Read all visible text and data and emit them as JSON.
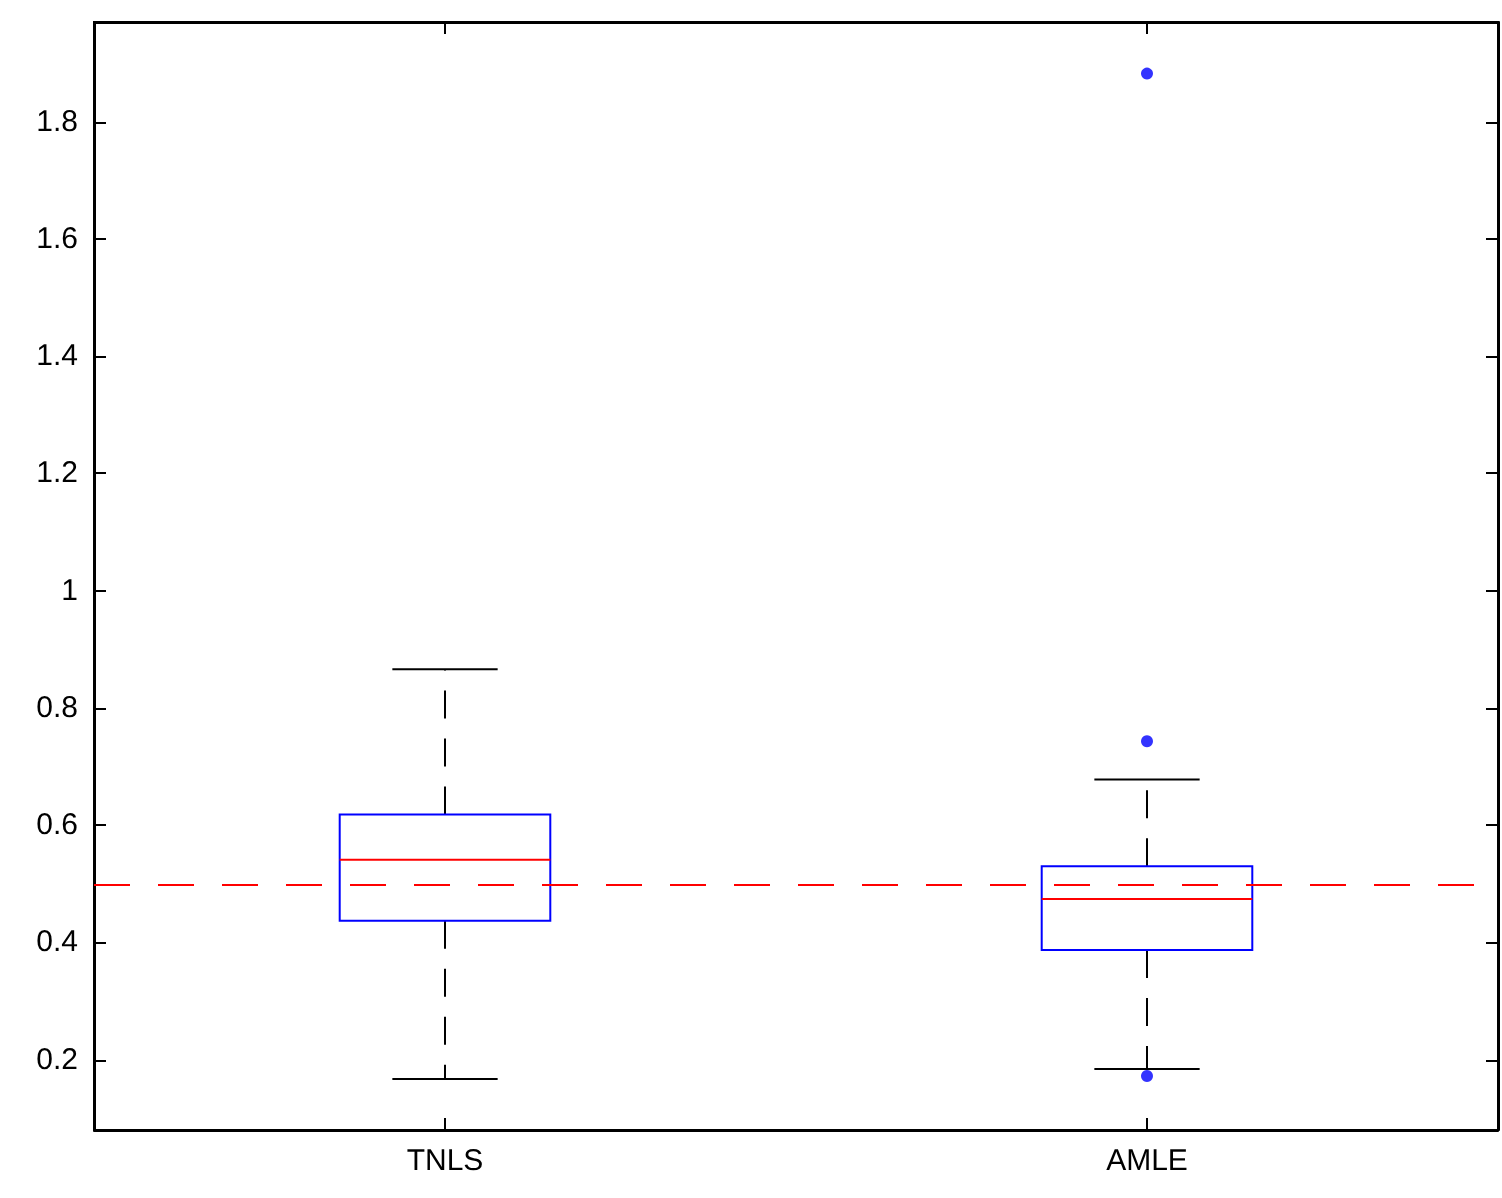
{
  "chart_data": {
    "type": "box",
    "categories": [
      "TNLS",
      "AMLE"
    ],
    "series": [
      {
        "color": "#0000ff",
        "boxes": [
          {
            "low": 0.167,
            "q1": 0.437,
            "median": 0.541,
            "q3": 0.618,
            "high": 0.866
          },
          {
            "low": 0.184,
            "q1": 0.387,
            "median": 0.474,
            "q3": 0.53,
            "high": 0.678,
            "outliers": [
              1.882,
              0.743,
              0.172
            ]
          }
        ]
      }
    ],
    "ylim": [
      0.08,
      1.97
    ],
    "yticks": [
      0.2,
      0.4,
      0.6,
      0.8,
      1,
      1.2,
      1.4,
      1.6,
      1.8
    ],
    "ref_lines": [
      {
        "axis": "y",
        "value": 0.5,
        "color": "#ff0000",
        "line_style": "dashed"
      }
    ],
    "grid": false
  }
}
